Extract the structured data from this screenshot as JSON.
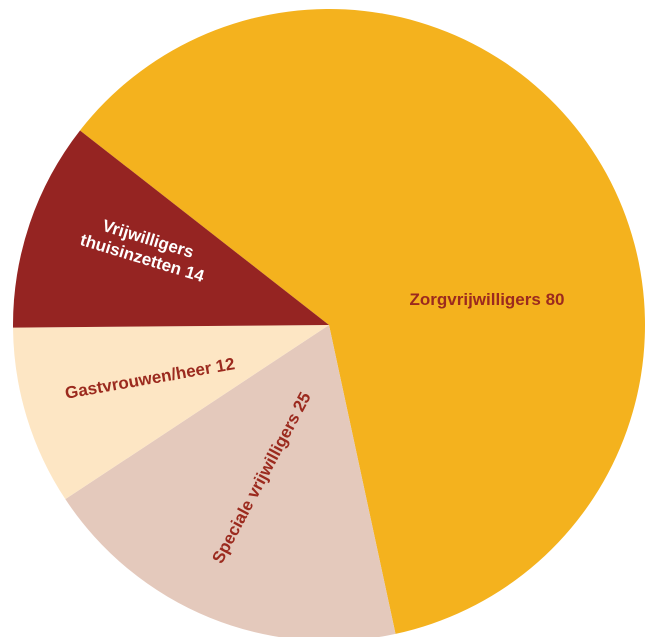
{
  "chart_data": {
    "type": "pie",
    "categories": [
      "Zorgvrijwilligers",
      "Speciale vrijwilligers",
      "Gastvrouwen/heer",
      "Vrijwilligers thuisinzetten"
    ],
    "values": [
      80,
      25,
      12,
      14
    ],
    "colors": [
      "#f4b21e",
      "#e4c9bc",
      "#fde6c4",
      "#952422"
    ],
    "label_colors": [
      "#9b2a1e",
      "#9b2a1e",
      "#9b2a1e",
      "#ffffff"
    ]
  }
}
